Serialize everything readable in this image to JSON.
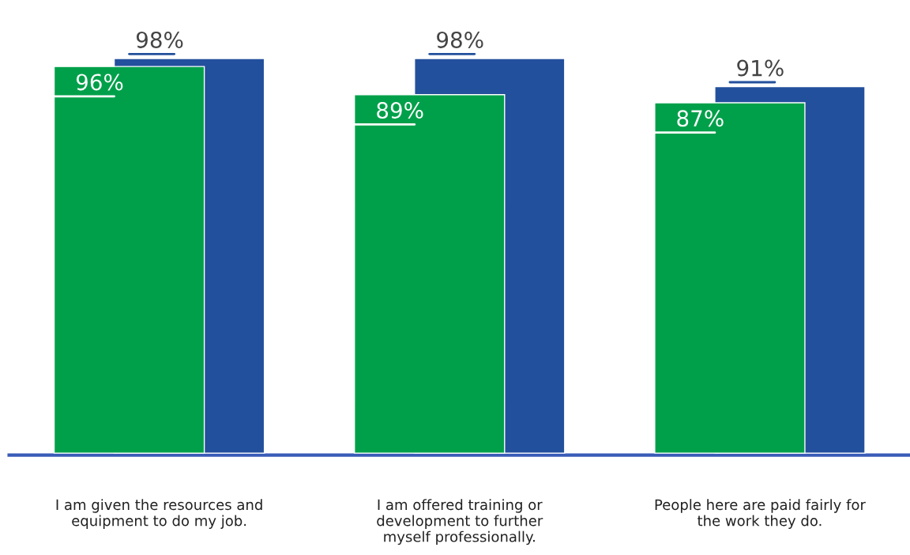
{
  "chart_data": {
    "type": "bar",
    "categories": [
      "I am given the resources and\nequipment to do my job.",
      "I am offered training or\ndevelopment to further\nmyself professionally.",
      "People here are paid fairly for\nthe work they do."
    ],
    "series": [
      {
        "color": "#00a04a",
        "values": [
          96,
          89,
          87
        ],
        "value_labels": [
          "96%",
          "89%",
          "87%"
        ]
      },
      {
        "color": "#23509c",
        "values": [
          98,
          98,
          91
        ],
        "value_labels": [
          "98%",
          "98%",
          "91%"
        ]
      }
    ],
    "tick_labels": "x",
    "grid": false,
    "legend": false
  }
}
